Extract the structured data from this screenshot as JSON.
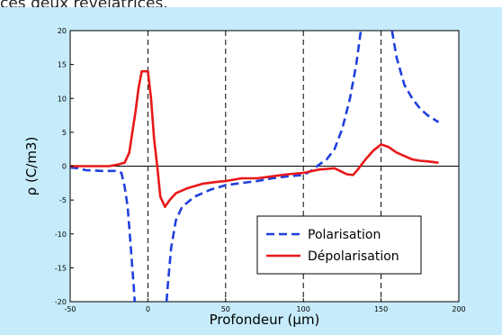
{
  "caption_text": "ces deux révélatrices.",
  "chart_data": {
    "type": "line",
    "title": "",
    "xlabel": "Profondeur (µm)",
    "ylabel": "ρ (C/m3)",
    "xlim": [
      -50,
      200
    ],
    "ylim": [
      -20,
      20
    ],
    "xticks": [
      "-50",
      "0",
      "50",
      "100",
      "150",
      "200"
    ],
    "yticks": [
      "20",
      "15",
      "10",
      "5",
      "0",
      "-5",
      "-10",
      "-15",
      "-20"
    ],
    "grid": false,
    "legend_position": "bottom-right",
    "vertical_dashed_lines_x": [
      0,
      50,
      100,
      150,
      200
    ],
    "zero_line_y": 0,
    "colors": {
      "background": "#c6ecfb",
      "plot_area": "#ffffff",
      "polarisation": "#1f3fdc",
      "depolarisation": "#e81818"
    },
    "series": [
      {
        "name": "Polarisation",
        "style": "dashed",
        "color": "#1f3fdc",
        "segments": [
          [
            [
              -50,
              -0.2
            ],
            [
              -45,
              -0.3
            ],
            [
              -40,
              -0.6
            ],
            [
              -30,
              -0.7
            ],
            [
              -20,
              -0.7
            ],
            [
              -17,
              -1
            ],
            [
              -15,
              -3
            ],
            [
              -13,
              -6
            ],
            [
              -11,
              -12
            ],
            [
              -9,
              -18
            ],
            [
              -8.5,
              -20
            ]
          ],
          [
            [
              12,
              -20
            ],
            [
              13,
              -17
            ],
            [
              15,
              -12
            ],
            [
              18,
              -8
            ],
            [
              22,
              -6
            ],
            [
              30,
              -4.5
            ],
            [
              40,
              -3.5
            ],
            [
              50,
              -2.8
            ],
            [
              60,
              -2.5
            ],
            [
              70,
              -2.2
            ],
            [
              80,
              -1.8
            ],
            [
              90,
              -1.5
            ],
            [
              100,
              -1.3
            ],
            [
              105,
              -0.7
            ],
            [
              110,
              0.2
            ],
            [
              115,
              1
            ],
            [
              120,
              2.5
            ],
            [
              125,
              5.5
            ],
            [
              130,
              10
            ],
            [
              134,
              15
            ],
            [
              137,
              20
            ]
          ],
          [
            [
              157,
              20
            ],
            [
              160,
              16
            ],
            [
              165,
              12
            ],
            [
              170,
              10
            ],
            [
              175,
              8.5
            ],
            [
              180,
              7.5
            ],
            [
              187,
              6.5
            ]
          ]
        ]
      },
      {
        "name": "Dépolarisation",
        "style": "solid",
        "color": "#e81818",
        "segments": [
          [
            [
              -50,
              0
            ],
            [
              -45,
              0
            ],
            [
              -40,
              0
            ],
            [
              -35,
              0
            ],
            [
              -30,
              0
            ],
            [
              -25,
              0
            ],
            [
              -20,
              0.2
            ],
            [
              -15,
              0.5
            ],
            [
              -12,
              2
            ],
            [
              -10,
              5
            ],
            [
              -8,
              8
            ],
            [
              -6,
              11.5
            ],
            [
              -4,
              14
            ],
            [
              0,
              14
            ],
            [
              2,
              10
            ],
            [
              4,
              4
            ],
            [
              6,
              0
            ],
            [
              8,
              -4.5
            ],
            [
              11,
              -6
            ],
            [
              14,
              -5
            ],
            [
              18,
              -4
            ],
            [
              25,
              -3.3
            ],
            [
              35,
              -2.6
            ],
            [
              45,
              -2.3
            ],
            [
              50,
              -2.2
            ],
            [
              60,
              -1.8
            ],
            [
              70,
              -1.8
            ],
            [
              80,
              -1.5
            ],
            [
              90,
              -1.2
            ],
            [
              100,
              -1
            ],
            [
              110,
              -0.5
            ],
            [
              120,
              -0.3
            ],
            [
              128,
              -1.2
            ],
            [
              132,
              -1.3
            ],
            [
              135,
              -0.5
            ],
            [
              140,
              1
            ],
            [
              145,
              2.3
            ],
            [
              150,
              3.2
            ],
            [
              155,
              2.8
            ],
            [
              160,
              2
            ],
            [
              165,
              1.5
            ],
            [
              170,
              1
            ],
            [
              175,
              0.8
            ],
            [
              180,
              0.7
            ],
            [
              187,
              0.5
            ]
          ]
        ]
      }
    ]
  }
}
